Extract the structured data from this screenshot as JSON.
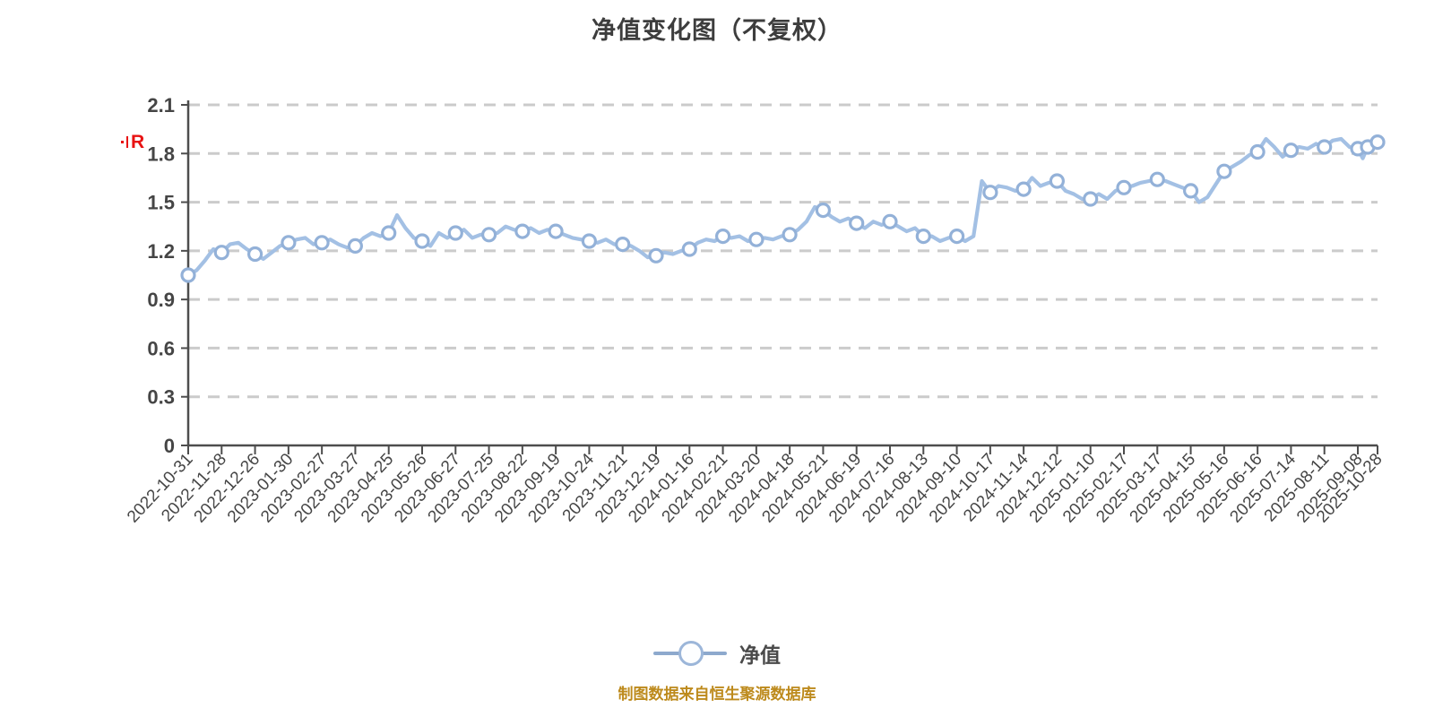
{
  "title": {
    "text": "净值变化图（不复权）",
    "color": "#3d3d3d"
  },
  "annotations": {
    "r_marker": {
      "text": "R",
      "color": "#e81212"
    }
  },
  "legend": {
    "label": "净值"
  },
  "footer": {
    "source_note": "制图数据来自恒生聚源数据库",
    "color": "#bd8a1c"
  },
  "chart_data": {
    "type": "line",
    "title": "净值变化图（不复权）",
    "series_name": "净值",
    "xlabel": "",
    "ylabel": "",
    "ylim": [
      0,
      2.1
    ],
    "y_ticks": [
      "0",
      "0.3",
      "0.6",
      "0.9",
      "1.2",
      "1.5",
      "1.8",
      "2.1"
    ],
    "y_tick_values": [
      0,
      0.3,
      0.6,
      0.9,
      1.2,
      1.5,
      1.8,
      2.1
    ],
    "grid": "horizontal-dashed",
    "legend_position": "bottom-center",
    "x_tick_labels": [
      "2022-10-31",
      "2022-11-28",
      "2022-12-26",
      "2023-01-30",
      "2023-02-27",
      "2023-03-27",
      "2023-04-25",
      "2023-05-26",
      "2023-06-27",
      "2023-07-25",
      "2023-08-22",
      "2023-09-19",
      "2023-10-24",
      "2023-11-21",
      "2023-12-19",
      "2024-01-16",
      "2024-02-21",
      "2024-03-20",
      "2024-04-18",
      "2024-05-21",
      "2024-06-19",
      "2024-07-16",
      "2024-08-13",
      "2024-09-10",
      "2024-10-17",
      "2024-11-14",
      "2024-12-12",
      "2025-01-10",
      "2025-02-17",
      "2025-03-17",
      "2025-04-15",
      "2025-05-16",
      "2025-06-16",
      "2025-07-14",
      "2025-08-11",
      "2025-09-08",
      "2025-10-28"
    ],
    "points_per_tick": 4,
    "marker_every": 4,
    "extra_marker_indices": [
      142
    ],
    "line_values": [
      1.05,
      1.08,
      1.14,
      1.21,
      1.19,
      1.24,
      1.25,
      1.21,
      1.18,
      1.15,
      1.19,
      1.23,
      1.25,
      1.27,
      1.28,
      1.24,
      1.25,
      1.27,
      1.24,
      1.22,
      1.23,
      1.28,
      1.31,
      1.29,
      1.31,
      1.42,
      1.34,
      1.28,
      1.26,
      1.23,
      1.31,
      1.28,
      1.31,
      1.33,
      1.28,
      1.3,
      1.3,
      1.31,
      1.35,
      1.33,
      1.32,
      1.34,
      1.31,
      1.33,
      1.32,
      1.3,
      1.28,
      1.27,
      1.26,
      1.25,
      1.27,
      1.24,
      1.24,
      1.23,
      1.2,
      1.16,
      1.17,
      1.19,
      1.18,
      1.2,
      1.21,
      1.25,
      1.27,
      1.26,
      1.29,
      1.28,
      1.29,
      1.26,
      1.27,
      1.28,
      1.27,
      1.29,
      1.3,
      1.33,
      1.38,
      1.47,
      1.45,
      1.41,
      1.38,
      1.4,
      1.37,
      1.34,
      1.38,
      1.36,
      1.38,
      1.35,
      1.32,
      1.34,
      1.29,
      1.29,
      1.26,
      1.28,
      1.29,
      1.26,
      1.29,
      1.63,
      1.56,
      1.6,
      1.59,
      1.57,
      1.58,
      1.65,
      1.6,
      1.62,
      1.63,
      1.57,
      1.55,
      1.52,
      1.52,
      1.55,
      1.52,
      1.57,
      1.59,
      1.6,
      1.62,
      1.63,
      1.64,
      1.63,
      1.61,
      1.59,
      1.57,
      1.5,
      1.53,
      1.61,
      1.69,
      1.72,
      1.75,
      1.79,
      1.81,
      1.89,
      1.84,
      1.78,
      1.82,
      1.84,
      1.83,
      1.86,
      1.84,
      1.88,
      1.89,
      1.84,
      1.83,
      1.77,
      1.84,
      1.86,
      1.87
    ],
    "marker_values_by_tick": [
      1.05,
      1.19,
      1.18,
      1.25,
      1.25,
      1.23,
      1.31,
      1.26,
      1.31,
      1.3,
      1.32,
      1.32,
      1.26,
      1.24,
      1.17,
      1.21,
      1.29,
      1.27,
      1.3,
      1.45,
      1.37,
      1.38,
      1.29,
      1.29,
      1.56,
      1.58,
      1.63,
      1.52,
      1.59,
      1.64,
      1.57,
      1.69,
      1.81,
      1.82,
      1.84,
      1.83,
      1.87
    ],
    "colors": {
      "line": "#a3c0e4",
      "marker_fill": "#ffffff",
      "marker_stroke": "#93b1d8",
      "grid": "#cbcbcb",
      "axis": "#4d4d4d",
      "tick_text": "#454545"
    }
  }
}
